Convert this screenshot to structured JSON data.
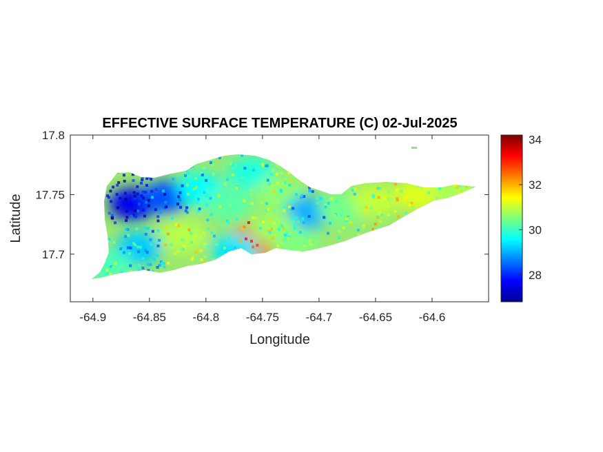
{
  "chart_data": {
    "type": "heatmap",
    "title": "EFFECTIVE SURFACE TEMPERATURE (C) 02-Jul-2025",
    "xlabel": "Longitude",
    "ylabel": "Latitude",
    "xlim": [
      -64.92,
      -64.55
    ],
    "ylim": [
      17.66,
      17.8
    ],
    "x_ticks": [
      -64.9,
      -64.85,
      -64.8,
      -64.75,
      -64.7,
      -64.65,
      -64.6
    ],
    "x_tick_labels": [
      "-64.9",
      "-64.85",
      "-64.8",
      "-64.75",
      "-64.7",
      "-64.65",
      "-64.6"
    ],
    "y_ticks": [
      17.7,
      17.75,
      17.8
    ],
    "y_tick_labels": [
      "17.7",
      "17.75",
      "17.8"
    ],
    "colorbar": {
      "colormap": "jet",
      "range": [
        26.8,
        34.2
      ],
      "ticks": [
        28,
        30,
        32,
        34
      ],
      "tick_labels": [
        "28",
        "30",
        "32",
        "34"
      ]
    },
    "grid": false,
    "regions": [
      {
        "lon": -64.865,
        "lat": 17.742,
        "temp": 27.6
      },
      {
        "lon": -64.835,
        "lat": 17.748,
        "temp": 28.3
      },
      {
        "lon": -64.805,
        "lat": 17.755,
        "temp": 29.6
      },
      {
        "lon": -64.78,
        "lat": 17.742,
        "temp": 30.2
      },
      {
        "lon": -64.76,
        "lat": 17.768,
        "temp": 29.8
      },
      {
        "lon": -64.735,
        "lat": 17.752,
        "temp": 30.6
      },
      {
        "lon": -64.71,
        "lat": 17.735,
        "temp": 29.0
      },
      {
        "lon": -64.68,
        "lat": 17.738,
        "temp": 30.4
      },
      {
        "lon": -64.65,
        "lat": 17.745,
        "temp": 31.0
      },
      {
        "lon": -64.61,
        "lat": 17.75,
        "temp": 31.2
      },
      {
        "lon": -64.58,
        "lat": 17.753,
        "temp": 30.8
      },
      {
        "lon": -64.76,
        "lat": 17.71,
        "temp": 32.8
      },
      {
        "lon": -64.82,
        "lat": 17.715,
        "temp": 30.9
      },
      {
        "lon": -64.86,
        "lat": 17.705,
        "temp": 29.2
      },
      {
        "lon": -64.74,
        "lat": 17.722,
        "temp": 30.7
      },
      {
        "lon": -64.775,
        "lat": 17.703,
        "temp": 29.4
      },
      {
        "lon": -64.885,
        "lat": 17.69,
        "temp": 30.1
      },
      {
        "lon": -64.72,
        "lat": 17.708,
        "temp": 30.5
      }
    ]
  }
}
